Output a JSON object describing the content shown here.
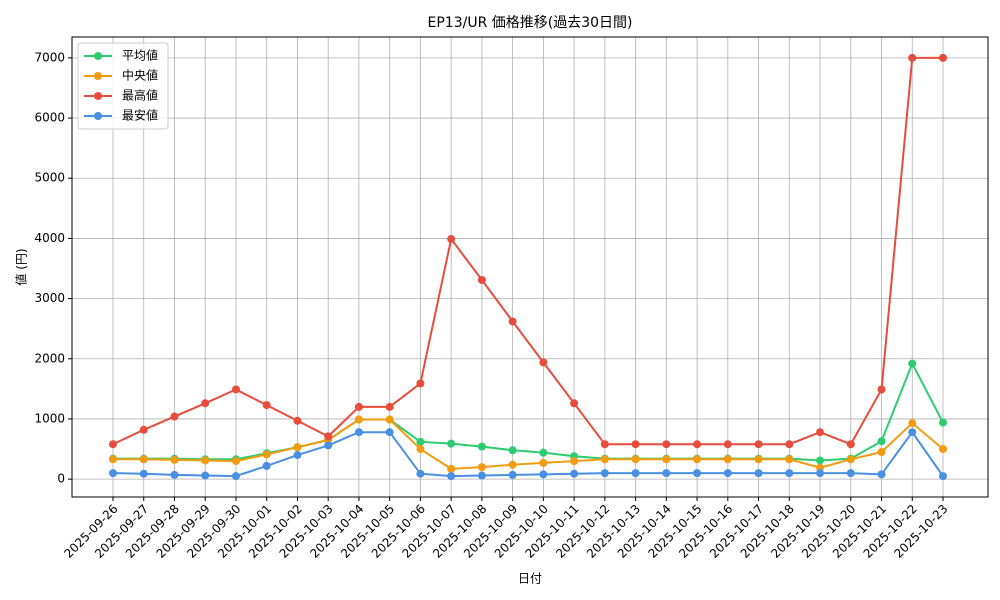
{
  "chart_data": {
    "type": "line",
    "title": "EP13/UR 価格推移(過去30日間)",
    "x_label": "日付",
    "y_label": "値 (円)",
    "categories": [
      "2025-09-26",
      "2025-09-27",
      "2025-09-28",
      "2025-09-29",
      "2025-09-30",
      "2025-10-01",
      "2025-10-02",
      "2025-10-03",
      "2025-10-04",
      "2025-10-05",
      "2025-10-06",
      "2025-10-07",
      "2025-10-08",
      "2025-10-09",
      "2025-10-10",
      "2025-10-11",
      "2025-10-12",
      "2025-10-13",
      "2025-10-14",
      "2025-10-15",
      "2025-10-16",
      "2025-10-17",
      "2025-10-18",
      "2025-10-19",
      "2025-10-20",
      "2025-10-21",
      "2025-10-22",
      "2025-10-23"
    ],
    "series": [
      {
        "name": "平均値",
        "color": "#2ecc71",
        "values": [
          340,
          340,
          340,
          330,
          330,
          430,
          530,
          650,
          990,
          990,
          620,
          590,
          540,
          480,
          440,
          380,
          340,
          340,
          340,
          340,
          340,
          340,
          340,
          310,
          340,
          630,
          1920,
          940
        ]
      },
      {
        "name": "中央値",
        "color": "#f39c12",
        "values": [
          330,
          330,
          320,
          310,
          300,
          410,
          530,
          650,
          990,
          990,
          500,
          170,
          200,
          240,
          270,
          300,
          330,
          330,
          330,
          330,
          330,
          330,
          330,
          190,
          330,
          450,
          930,
          500
        ]
      },
      {
        "name": "最高値",
        "color": "#e74c3c",
        "values": [
          580,
          820,
          1040,
          1260,
          1490,
          1230,
          970,
          710,
          1200,
          1200,
          1590,
          3990,
          3310,
          2620,
          1940,
          1260,
          580,
          580,
          580,
          580,
          580,
          580,
          580,
          780,
          580,
          1490,
          7000,
          7000
        ]
      },
      {
        "name": "最安値",
        "color": "#4a90e2",
        "values": [
          100,
          90,
          70,
          60,
          50,
          220,
          400,
          560,
          780,
          780,
          90,
          50,
          60,
          70,
          80,
          90,
          100,
          100,
          100,
          100,
          100,
          100,
          100,
          100,
          100,
          80,
          780,
          50
        ]
      }
    ],
    "ylim": [
      -297,
      7347
    ],
    "yticks": [
      0,
      1000,
      2000,
      3000,
      4000,
      5000,
      6000,
      7000
    ],
    "grid": true,
    "legend": "upper left"
  }
}
